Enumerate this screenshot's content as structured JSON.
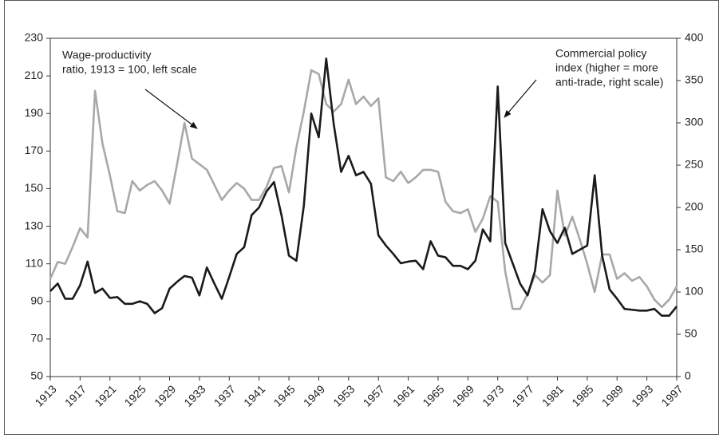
{
  "chart_data": {
    "type": "line",
    "annotations": [
      {
        "lines": [
          "Wage-productivity",
          "ratio, 1913 = 100, left scale"
        ]
      },
      {
        "lines": [
          "Commercial policy",
          "index (higher = more",
          "anti-trade, right scale)"
        ]
      }
    ],
    "x": [
      1913,
      1914,
      1915,
      1916,
      1917,
      1918,
      1919,
      1920,
      1921,
      1922,
      1923,
      1924,
      1925,
      1926,
      1927,
      1928,
      1929,
      1930,
      1931,
      1932,
      1933,
      1934,
      1935,
      1936,
      1937,
      1938,
      1939,
      1940,
      1941,
      1942,
      1943,
      1944,
      1945,
      1946,
      1947,
      1948,
      1949,
      1950,
      1951,
      1952,
      1953,
      1954,
      1955,
      1956,
      1957,
      1958,
      1959,
      1960,
      1961,
      1962,
      1963,
      1964,
      1965,
      1966,
      1967,
      1968,
      1969,
      1970,
      1971,
      1972,
      1973,
      1974,
      1975,
      1976,
      1977,
      1978,
      1979,
      1980,
      1981,
      1982,
      1983,
      1984,
      1985,
      1986,
      1987,
      1988,
      1989,
      1990,
      1991,
      1992,
      1993,
      1994,
      1995,
      1996,
      1997
    ],
    "series": [
      {
        "name": "Wage-productivity ratio",
        "color": "#a8a8a8",
        "values": [
          102,
          111,
          110,
          119,
          129,
          124,
          202,
          174,
          157,
          138,
          137,
          154,
          149,
          152,
          154,
          149,
          142,
          163,
          185,
          166,
          163,
          160,
          152,
          144,
          149,
          153,
          150,
          144,
          144,
          151,
          161,
          162,
          148,
          172,
          191,
          213,
          211,
          195,
          191,
          195,
          208,
          195,
          199,
          194,
          198,
          156,
          154,
          159,
          153,
          156,
          160,
          160,
          159,
          143,
          138,
          137,
          139,
          127,
          134,
          146,
          143,
          106,
          86,
          86,
          94,
          104,
          100,
          104,
          149,
          125,
          135,
          123,
          110,
          95,
          115,
          115,
          102,
          105,
          101,
          103,
          98,
          91,
          87,
          91,
          98
        ]
      },
      {
        "name": "Commercial policy index",
        "color": "#1a1a1a",
        "axis": "y2",
        "values": [
          101,
          110,
          92,
          92,
          108,
          136,
          99,
          104,
          93,
          94,
          86,
          86,
          89,
          86,
          75,
          81,
          104,
          112,
          119,
          117,
          96,
          129,
          110,
          92,
          118,
          145,
          153,
          191,
          200,
          219,
          230,
          191,
          143,
          137,
          202,
          311,
          283,
          376,
          299,
          242,
          261,
          238,
          242,
          228,
          167,
          155,
          145,
          134,
          136,
          137,
          127,
          160,
          143,
          141,
          131,
          131,
          127,
          137,
          174,
          160,
          343,
          158,
          134,
          110,
          96,
          125,
          198,
          172,
          158,
          176,
          145,
          150,
          155,
          238,
          143,
          103,
          92,
          80,
          79,
          78,
          78,
          80,
          72,
          72,
          83
        ]
      }
    ],
    "xlim": [
      1913,
      1997
    ],
    "xticks": [
      1913,
      1917,
      1921,
      1925,
      1929,
      1933,
      1937,
      1941,
      1945,
      1949,
      1953,
      1957,
      1961,
      1965,
      1969,
      1973,
      1977,
      1981,
      1985,
      1989,
      1993,
      1997
    ],
    "ylim": [
      50,
      230
    ],
    "yticks": [
      50,
      70,
      90,
      110,
      130,
      150,
      170,
      190,
      210,
      230
    ],
    "y2lim": [
      0,
      400
    ],
    "y2ticks": [
      0,
      50,
      100,
      150,
      200,
      250,
      300,
      350,
      400
    ]
  }
}
